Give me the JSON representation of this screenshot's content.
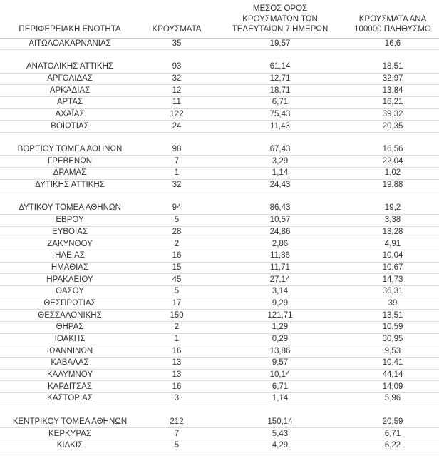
{
  "chart_data": {
    "type": "table",
    "title": "",
    "columns": [
      "ΠΕΡΙΦΕΡΕΙΑΚΗ ΕΝΟΤΗΤΑ",
      "ΚΡΟΥΣΜΑΤΑ",
      "ΜΕΣΟΣ ΟΡΟΣ\nΚΡΟΥΣΜΑΤΩΝ ΤΩΝ\nΤΕΛΕΥΤΑΙΩΝ 7 ΗΜΕΡΩΝ",
      "ΚΡΟΥΣΜΑΤΑ ΑΝΑ\n100000 ΠΛΗΘΥΣΜΟ"
    ],
    "rows": [
      [
        "ΑΙΤΩΛΟΑΚΑΡΝΑΝΙΑΣ",
        "35",
        "19,57",
        "16,6"
      ],
      null,
      [
        "ΑΝΑΤΟΛΙΚΗΣ ΑΤΤΙΚΗΣ",
        "93",
        "61,14",
        "18,51"
      ],
      [
        "ΑΡΓΟΛΙΔΑΣ",
        "32",
        "12,71",
        "32,97"
      ],
      [
        "ΑΡΚΑΔΙΑΣ",
        "12",
        "18,71",
        "13,84"
      ],
      [
        "ΑΡΤΑΣ",
        "11",
        "6,71",
        "16,21"
      ],
      [
        "ΑΧΑΪΑΣ",
        "122",
        "75,43",
        "39,32"
      ],
      [
        "ΒΟΙΩΤΙΑΣ",
        "24",
        "11,43",
        "20,35"
      ],
      null,
      [
        "ΒΟΡΕΙΟΥ ΤΟΜΕΑ ΑΘΗΝΩΝ",
        "98",
        "67,43",
        "16,56"
      ],
      [
        "ΓΡΕΒΕΝΩΝ",
        "7",
        "3,29",
        "22,04"
      ],
      [
        "ΔΡΑΜΑΣ",
        "1",
        "1,14",
        "1,02"
      ],
      [
        "ΔΥΤΙΚΗΣ ΑΤΤΙΚΗΣ",
        "32",
        "24,43",
        "19,88"
      ],
      null,
      [
        "ΔΥΤΙΚΟΥ ΤΟΜΕΑ ΑΘΗΝΩΝ",
        "94",
        "86,43",
        "19,2"
      ],
      [
        "ΕΒΡΟΥ",
        "5",
        "10,57",
        "3,38"
      ],
      [
        "ΕΥΒΟΙΑΣ",
        "28",
        "24,86",
        "13,28"
      ],
      [
        "ΖΑΚΥΝΘΟΥ",
        "2",
        "2,86",
        "4,91"
      ],
      [
        "ΗΛΕΙΑΣ",
        "16",
        "11,86",
        "10,04"
      ],
      [
        "ΗΜΑΘΙΑΣ",
        "15",
        "11,71",
        "10,67"
      ],
      [
        "ΗΡΑΚΛΕΙΟΥ",
        "45",
        "27,14",
        "14,73"
      ],
      [
        "ΘΑΣΟΥ",
        "5",
        "3,14",
        "36,31"
      ],
      [
        "ΘΕΣΠΡΩΤΙΑΣ",
        "17",
        "9,29",
        "39"
      ],
      [
        "ΘΕΣΣΑΛΟΝΙΚΗΣ",
        "150",
        "121,71",
        "13,51"
      ],
      [
        "ΘΗΡΑΣ",
        "2",
        "1,29",
        "10,59"
      ],
      [
        "ΙΘΑΚΗΣ",
        "1",
        "0,29",
        "30,95"
      ],
      [
        "ΙΩΑΝΝΙΝΩΝ",
        "16",
        "13,86",
        "9,53"
      ],
      [
        "ΚΑΒΑΛΑΣ",
        "13",
        "9,57",
        "10,41"
      ],
      [
        "ΚΑΛΥΜΝΟΥ",
        "13",
        "10,14",
        "44,14"
      ],
      [
        "ΚΑΡΔΙΤΣΑΣ",
        "16",
        "6,71",
        "14,09"
      ],
      [
        "ΚΑΣΤΟΡΙΑΣ",
        "3",
        "1,14",
        "5,96"
      ],
      null,
      [
        "ΚΕΝΤΡΙΚΟΥ ΤΟΜΕΑ ΑΘΗΝΩΝ",
        "212",
        "150,14",
        "20,59"
      ],
      [
        "ΚΕΡΚΥΡΑΣ",
        "7",
        "5,43",
        "6,71"
      ],
      [
        "ΚΙΛΚΙΣ",
        "5",
        "4,29",
        "6,22"
      ]
    ],
    "layout": {
      "grid": "horizontal-row-dividers",
      "header_alignment": "center-bottom",
      "cell_alignment": "center",
      "border_color": "#dcdcdc",
      "header_border_color": "#c6c6c6",
      "text_color": "#333333",
      "background_color": "#ffffff"
    }
  }
}
